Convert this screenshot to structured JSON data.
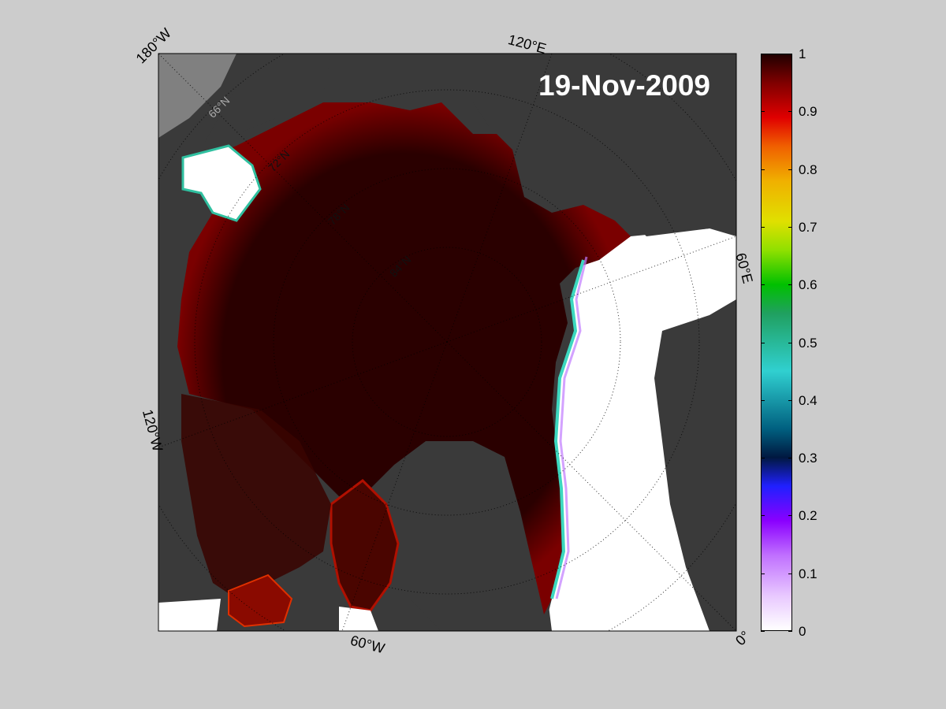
{
  "map": {
    "date": "19-Nov-2009",
    "longitude_labels": [
      "180°W",
      "120°E",
      "60°E",
      "120°W",
      "60°W",
      "0°"
    ],
    "latitude_labels": [
      "66°N",
      "72°N",
      "78°N",
      "84°N"
    ],
    "colors": {
      "land": "#3a3a3a",
      "land_outer": "#808080",
      "ice_high": "#2a0000",
      "open_water": "#ffffff",
      "background": "#cccccc"
    }
  },
  "colorbar": {
    "title": "",
    "ticks": [
      "1",
      "0.9",
      "0.8",
      "0.7",
      "0.6",
      "0.5",
      "0.4",
      "0.3",
      "0.2",
      "0.1",
      "0"
    ],
    "tick_values": [
      1,
      0.9,
      0.8,
      0.7,
      0.6,
      0.5,
      0.4,
      0.3,
      0.2,
      0.1,
      0
    ],
    "range": [
      0,
      1
    ]
  }
}
